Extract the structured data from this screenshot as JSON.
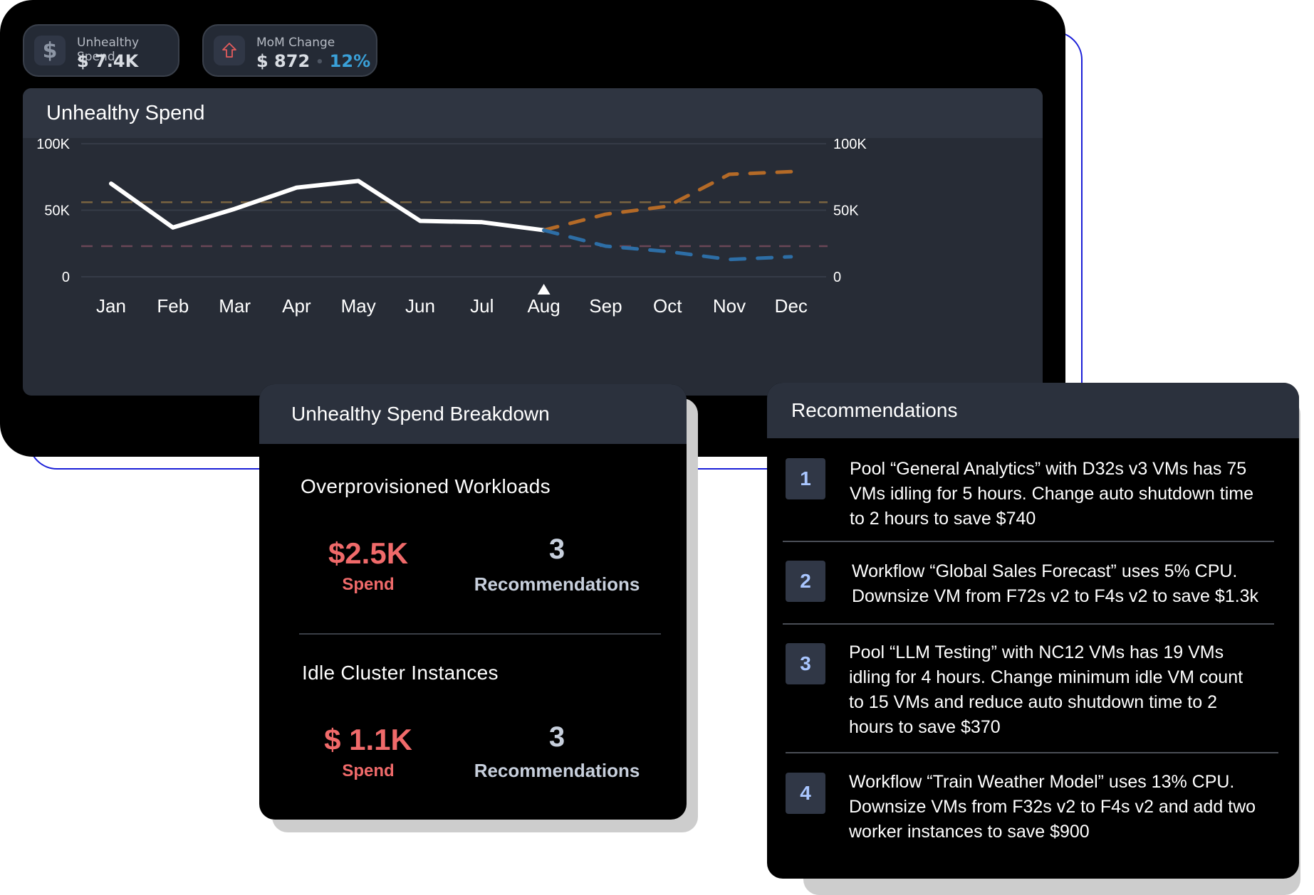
{
  "kpis": [
    {
      "label": "Unhealthy Spend",
      "value": "$ 7.4K",
      "icon": "dollar-icon"
    },
    {
      "label": "MoM Change",
      "value": "$ 872",
      "percent": "12%",
      "icon": "arrow-up-icon"
    }
  ],
  "chart": {
    "title": "Unhealthy Spend",
    "left_ticks": [
      "100K",
      "50K",
      "0"
    ],
    "right_ticks": [
      "100K",
      "50K",
      "0"
    ]
  },
  "chart_data": {
    "type": "line",
    "x": [
      "Jan",
      "Feb",
      "Mar",
      "Apr",
      "May",
      "Jun",
      "Jul",
      "Aug",
      "Sep",
      "Oct",
      "Nov",
      "Dec"
    ],
    "ylim": [
      0,
      100000
    ],
    "current_month_marker": "Aug",
    "series": [
      {
        "values": [
          70000,
          37000,
          51000,
          67000,
          72000,
          42000,
          41000,
          35000,
          null,
          null,
          null,
          null
        ],
        "color": "#ffffff",
        "style": "solid"
      },
      {
        "values": [
          null,
          null,
          null,
          null,
          null,
          null,
          null,
          35000,
          47000,
          53000,
          77000,
          79000
        ],
        "color": "#b46a27",
        "style": "dashed"
      },
      {
        "values": [
          null,
          null,
          null,
          null,
          null,
          null,
          null,
          35000,
          23000,
          19000,
          13000,
          15000
        ],
        "color": "#2d6ea6",
        "style": "dashed"
      }
    ],
    "reference_lines": [
      {
        "value": 56000,
        "color": "#7a6440",
        "style": "dashed"
      },
      {
        "value": 23000,
        "color": "#6a4656",
        "style": "dashed"
      }
    ],
    "grid": true,
    "legend": "none"
  },
  "breakdown": {
    "title": "Unhealthy Spend Breakdown",
    "sections": [
      {
        "title": "Overprovisioned Workloads",
        "spend": "$2.5K",
        "spend_label": "Spend",
        "recs": "3",
        "recs_label": "Recommendations"
      },
      {
        "title": "Idle Cluster Instances",
        "spend": "$ 1.1K",
        "spend_label": "Spend",
        "recs": "3",
        "recs_label": "Recommendations"
      }
    ]
  },
  "recommendations": {
    "title": "Recommendations",
    "items": [
      {
        "num": "1",
        "lines": [
          "Pool “General Analytics” with D32s v3 VMs has 75",
          "VMs idling for 5 hours. Change auto shutdown time",
          "to 2 hours to save $740"
        ]
      },
      {
        "num": "2",
        "lines": [
          "Workflow “Global Sales Forecast” uses 5% CPU.",
          "Downsize VM from F72s v2 to F4s v2 to save $1.3k"
        ]
      },
      {
        "num": "3",
        "lines": [
          "Pool “LLM Testing” with NC12 VMs has 19 VMs",
          "idling for 4 hours. Change minimum idle VM count",
          "to 15 VMs and reduce auto shutdown time to 2",
          "hours to save $370"
        ]
      },
      {
        "num": "4",
        "lines": [
          "Workflow “Train Weather Model” uses 13% CPU.",
          "Downsize VMs from F32s v2 to F4s v2 and add two",
          "worker instances to save $900"
        ]
      }
    ]
  }
}
